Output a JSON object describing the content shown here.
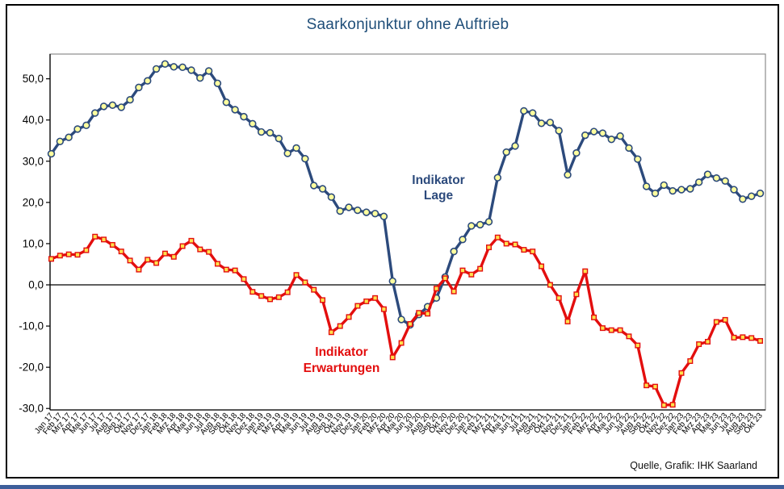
{
  "title": "Saarkonjunktur ohne Auftrieb",
  "source_note": "Quelle, Grafik: IHK Saarland",
  "colors": {
    "title_blue": "#1F4E79",
    "lage_line": "#2C4A7C",
    "lage_marker_fill": "#FFFF9E",
    "erwartungen_line": "#E30E0E",
    "erwartungen_marker_fill": "#FFE14D",
    "axis_black": "#000000",
    "plot_border_gray": "#8C8C8C",
    "bottom_bar_blue": "#3D5E9A"
  },
  "chart_data": {
    "type": "line",
    "title": "Saarkonjunktur ohne Auftrieb",
    "grid": "zero-line-only",
    "legend": "inline-annotations",
    "ylim": [
      -30.4,
      56
    ],
    "y_ticks": [
      {
        "label": "50,0",
        "value": 50
      },
      {
        "label": "40,0",
        "value": 40
      },
      {
        "label": "30,0",
        "value": 30
      },
      {
        "label": "20,0",
        "value": 20
      },
      {
        "label": "10,0",
        "value": 10
      },
      {
        "label": "0,0",
        "value": 0
      },
      {
        "label": "-10,0",
        "value": -10
      },
      {
        "label": "-20,0",
        "value": -20
      },
      {
        "label": "-30,0",
        "value": -30
      }
    ],
    "x_tick_labels": [
      "Jan 17",
      "Feb 17",
      "Mrz 17",
      "Apr 17",
      "Mai 17",
      "Jun 17",
      "Jul 17",
      "Aug 17",
      "Sep 17",
      "Okt 17",
      "Nov 17",
      "Dez 17",
      "Jan 18",
      "Feb 18",
      "Mrz 18",
      "Apr 18",
      "Mai 18",
      "Jun 18",
      "Jul 18",
      "Aug 18",
      "Sep 18",
      "Okt 18",
      "Nov 18",
      "Dez 18",
      "Jan 19",
      "Feb 19",
      "Mrz 19",
      "Apr 19",
      "Mai 19",
      "Jun 19",
      "Jul 19",
      "Aug 19",
      "Sep 19",
      "Okt 19",
      "Nov 19",
      "Dez 19",
      "Jan 20",
      "Feb 20",
      "Mrz 20",
      "Apr 20",
      "Mai 20",
      "Jun 20",
      "Jul 20",
      "Aug 20",
      "Sep 20",
      "Okt 20",
      "Nov 20",
      "Dez 20",
      "Jan 21",
      "Feb 21",
      "Mrz 21",
      "Apr 21",
      "Mai 21",
      "Jun 21",
      "Jul 21",
      "Aug 21",
      "Sep 21",
      "Okt 21",
      "Nov 21",
      "Dez 21",
      "Jan 22",
      "Feb 22",
      "Mrz 22",
      "Apr 22",
      "Mai 22",
      "Jun 22",
      "Jul 22",
      "Aug 22",
      "Sep 22",
      "Okt 22",
      "Nov 22",
      "Dez 22",
      "Jan 23",
      "Feb 23",
      "Mrz 23",
      "Apr 23",
      "Mai 23",
      "Jun 23",
      "Jul 23",
      "Aug 23",
      "Sep 23",
      "Okt 23"
    ],
    "series": [
      {
        "name": "Indikator Lage",
        "annotation_lines": [
          "Indikator",
          "Lage"
        ],
        "color": "#2C4A7C",
        "marker": "circle",
        "values": [
          31.8,
          34.8,
          35.8,
          37.8,
          38.7,
          41.7,
          43.3,
          43.6,
          43.1,
          44.9,
          47.9,
          49.5,
          52.4,
          53.6,
          52.9,
          52.8,
          52.1,
          50.2,
          51.9,
          48.9,
          44.3,
          42.5,
          40.8,
          39.1,
          37.1,
          36.9,
          35.5,
          31.9,
          33.2,
          30.6,
          24.1,
          23.3,
          21.3,
          17.9,
          18.8,
          18.1,
          17.6,
          17.3,
          16.6,
          0.9,
          -8.4,
          -9.7,
          -7.2,
          -5.3,
          -3.2,
          1.9,
          8.1,
          11.0,
          14.3,
          14.6,
          15.3,
          26.0,
          32.2,
          33.7,
          42.2,
          41.7,
          39.2,
          39.4,
          37.4,
          26.7,
          32.0,
          36.3,
          37.2,
          36.8,
          35.3,
          36.1,
          33.2,
          30.5,
          23.9,
          22.2,
          24.2,
          22.8,
          23.1,
          23.3,
          24.9,
          26.8,
          25.9,
          25.2,
          23.1,
          20.8,
          21.5,
          22.2
        ]
      },
      {
        "name": "Indikator Erwartungen",
        "annotation_lines": [
          "Indikator",
          "Erwartungen"
        ],
        "color": "#E30E0E",
        "marker": "square",
        "values": [
          6.3,
          7.1,
          7.4,
          7.3,
          8.4,
          11.7,
          11.0,
          9.7,
          8.1,
          5.9,
          3.7,
          6.1,
          5.3,
          7.6,
          6.8,
          9.4,
          10.7,
          8.6,
          8.0,
          5.1,
          3.7,
          3.5,
          1.4,
          -1.7,
          -2.7,
          -3.5,
          -3.0,
          -1.8,
          2.4,
          0.6,
          -1.2,
          -3.7,
          -11.5,
          -10.0,
          -7.8,
          -5.1,
          -4.0,
          -3.2,
          -5.9,
          -17.6,
          -14.1,
          -9.5,
          -6.8,
          -7.0,
          -0.9,
          1.6,
          -1.6,
          3.5,
          2.5,
          3.9,
          9.1,
          11.5,
          10.0,
          9.8,
          8.5,
          8.1,
          4.5,
          0.0,
          -3.2,
          -8.9,
          -2.3,
          3.3,
          -7.9,
          -10.5,
          -11.0,
          -11.0,
          -12.5,
          -14.7,
          -24.4,
          -24.7,
          -29.2,
          -29.1,
          -21.4,
          -18.5,
          -14.4,
          -13.8,
          -9.0,
          -8.5,
          -12.8,
          -12.7,
          -12.9,
          -13.6
        ]
      }
    ]
  }
}
